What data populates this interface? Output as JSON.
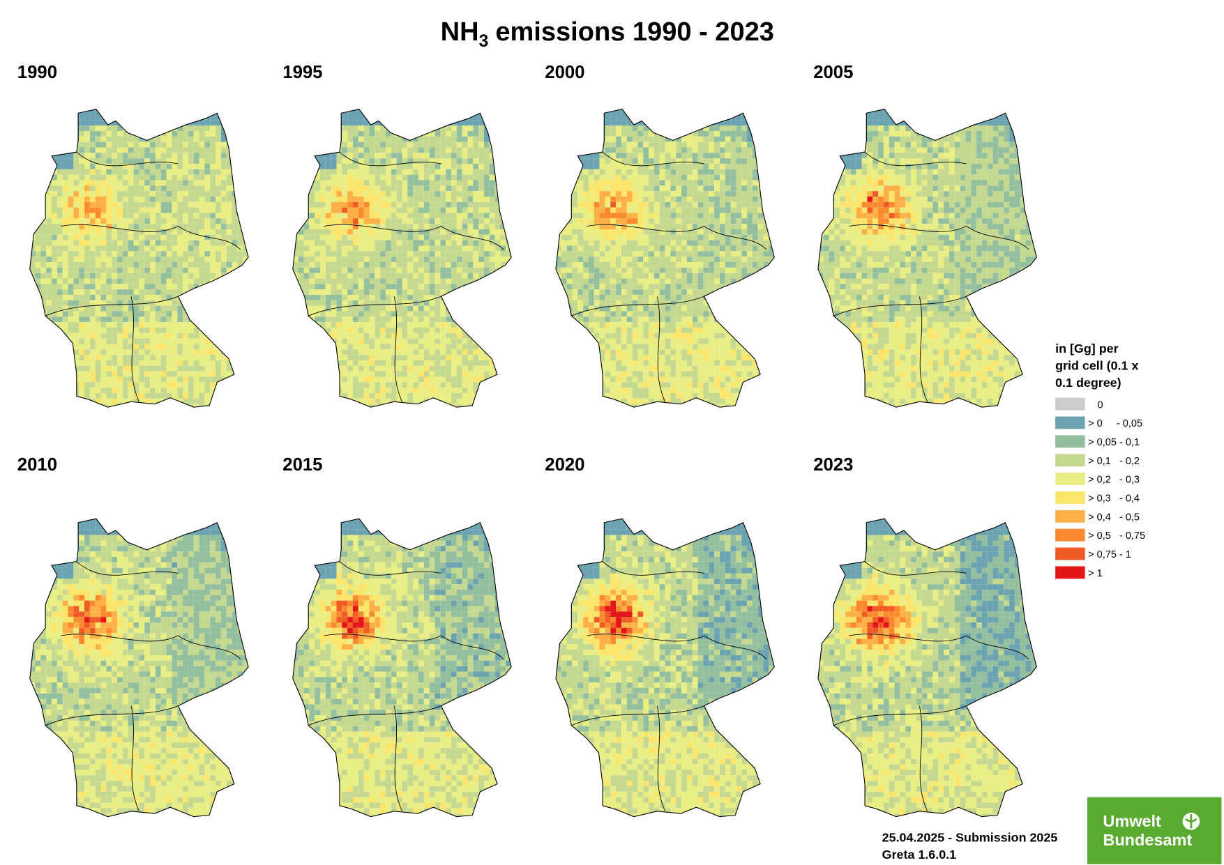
{
  "title": {
    "main": "NH",
    "subscript": "3",
    "rest": "emissions 1990 - 2023"
  },
  "panels": [
    {
      "year": "1990"
    },
    {
      "year": "1995"
    },
    {
      "year": "2000"
    },
    {
      "year": "2005"
    },
    {
      "year": "2010"
    },
    {
      "year": "2015"
    },
    {
      "year": "2020"
    },
    {
      "year": "2023"
    }
  ],
  "legend": {
    "title": [
      "in [Gg] per",
      "grid cell (0.1 x",
      "0.1 degree)"
    ],
    "items": [
      {
        "label": "0",
        "color": "#cccccc"
      },
      {
        "label": "> 0     - 0,05",
        "color": "#6ba3b1"
      },
      {
        "label": "> 0,05 - 0,1",
        "color": "#94bf9f"
      },
      {
        "label": "> 0,1   - 0,2",
        "color": "#c5d88f"
      },
      {
        "label": "> 0,2   - 0,3",
        "color": "#e9ee84"
      },
      {
        "label": "> 0,3   - 0,4",
        "color": "#fde46a"
      },
      {
        "label": "> 0,4   - 0,5",
        "color": "#fdb045"
      },
      {
        "label": "> 0,5   - 0,75",
        "color": "#fb8a2f"
      },
      {
        "label": "> 0,75 - 1",
        "color": "#f05a24"
      },
      {
        "label": "> 1",
        "color": "#e3151b"
      }
    ]
  },
  "footer": {
    "date": "25.04.2025 - Submission 2025",
    "version": "Greta 1.6.0.1"
  },
  "logo": {
    "line1": "Umwelt",
    "line2": "Bundesamt"
  }
}
